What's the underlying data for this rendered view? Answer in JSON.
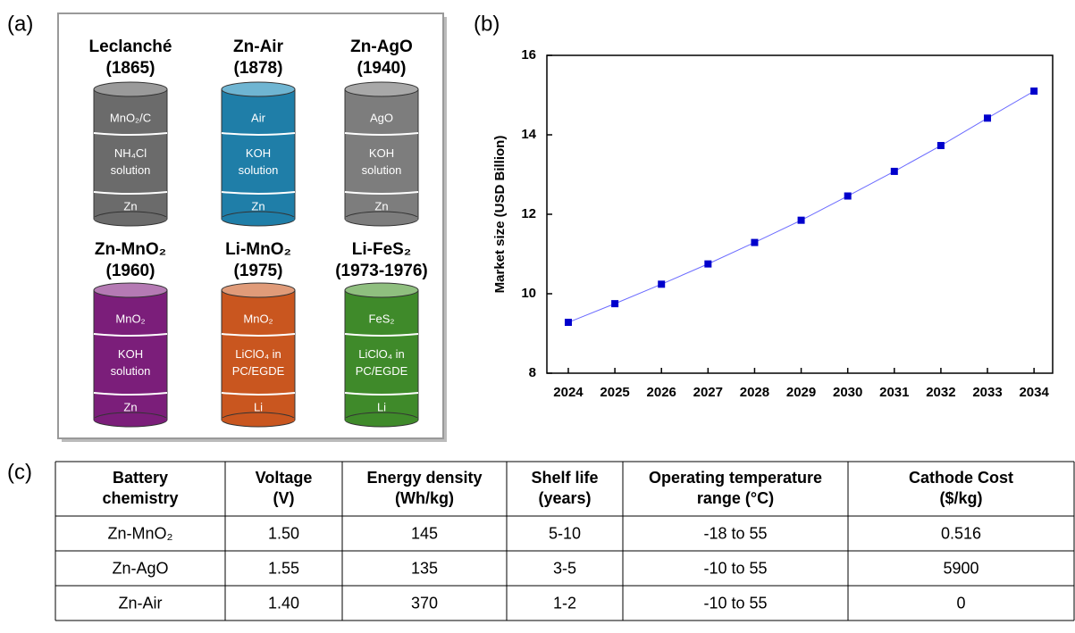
{
  "panels": [
    "(a)",
    "(b)",
    "(c)"
  ],
  "diagram": {
    "cells": [
      {
        "name": "Leclanché",
        "year": "(1865)",
        "layers": [
          [
            "MnO₂/C"
          ],
          [
            "NH₄Cl",
            "solution"
          ],
          [
            "Zn"
          ]
        ]
      },
      {
        "name": "Zn-Air",
        "year": "(1878)",
        "layers": [
          [
            "Air"
          ],
          [
            "KOH",
            "solution"
          ],
          [
            "Zn"
          ]
        ]
      },
      {
        "name": "Zn-AgO",
        "year": "(1940)",
        "layers": [
          [
            "AgO"
          ],
          [
            "KOH",
            "solution"
          ],
          [
            "Zn"
          ]
        ]
      },
      {
        "name": "Zn-MnO₂",
        "year": "(1960)",
        "layers": [
          [
            "MnO₂"
          ],
          [
            "KOH",
            "solution"
          ],
          [
            "Zn"
          ]
        ]
      },
      {
        "name": "Li-MnO₂",
        "year": "(1975)",
        "layers": [
          [
            "MnO₂"
          ],
          [
            "LiClO₄ in",
            "PC/EGDE"
          ],
          [
            "Li"
          ]
        ]
      },
      {
        "name": "Li-FeS₂",
        "year": "(1973-1976)",
        "layers": [
          [
            "FeS₂"
          ],
          [
            "LiClO₄ in",
            "PC/EGDE"
          ],
          [
            "Li"
          ]
        ]
      }
    ]
  },
  "chart_data": {
    "type": "line",
    "ylabel": "Market size (USD Billion)",
    "x": [
      2024,
      2025,
      2026,
      2027,
      2028,
      2029,
      2030,
      2031,
      2032,
      2033,
      2034
    ],
    "series": [
      {
        "color": "#0000cc",
        "values": [
          9.28,
          9.75,
          10.24,
          10.75,
          11.29,
          11.85,
          12.46,
          13.08,
          13.73,
          14.42,
          15.1
        ]
      }
    ],
    "xlim": [
      2023.54,
      2034.4
    ],
    "xticks": [
      2024,
      2025,
      2026,
      2027,
      2028,
      2029,
      2030,
      2031,
      2032,
      2033,
      2034
    ],
    "ylim": [
      8,
      16
    ],
    "yticks": [
      8,
      10,
      12,
      14,
      16
    ]
  },
  "table": {
    "header": [
      [
        "Battery",
        "chemistry"
      ],
      [
        "Voltage",
        "(V)"
      ],
      [
        "Energy density",
        "(Wh/kg)"
      ],
      [
        "Shelf life",
        "(years)"
      ],
      [
        "Operating temperature",
        "range (°C)"
      ],
      [
        "Cathode Cost",
        "($/kg)"
      ]
    ],
    "rows": [
      [
        "Zn-MnO₂",
        "1.50",
        "145",
        "5-10",
        "-18 to 55",
        "0.516"
      ],
      [
        "Zn-AgO",
        "1.55",
        "135",
        "3-5",
        "-10 to 55",
        "5900"
      ],
      [
        "Zn-Air",
        "1.40",
        "370",
        "1-2",
        "-10 to 55",
        "0"
      ]
    ]
  }
}
